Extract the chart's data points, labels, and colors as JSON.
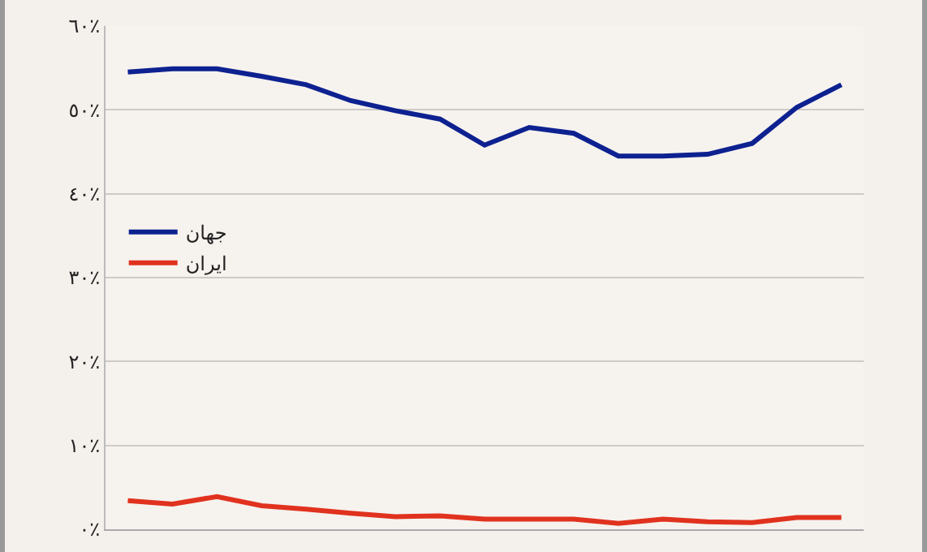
{
  "chart_data": {
    "type": "line",
    "categories": [
      null,
      null,
      null,
      null,
      null,
      null,
      null,
      null,
      null,
      null,
      null,
      null,
      null,
      null,
      null,
      null,
      null
    ],
    "series": [
      {
        "name": "جهان",
        "color": "#0d2190",
        "values": [
          54.5,
          54.9,
          54.9,
          54.0,
          53.0,
          51.1,
          49.9,
          48.9,
          45.8,
          47.9,
          47.2,
          44.5,
          44.5,
          44.7,
          46.0,
          50.3,
          53.0
        ]
      },
      {
        "name": "ایران",
        "color": "#e0321e",
        "values": [
          3.4,
          3.0,
          3.9,
          2.8,
          2.4,
          1.9,
          1.5,
          1.6,
          1.2,
          1.2,
          1.2,
          0.7,
          1.2,
          0.9,
          0.8,
          1.4,
          1.4
        ]
      }
    ],
    "ylim": [
      0,
      60
    ],
    "yticks": [
      {
        "value": 0,
        "label": "٠٪"
      },
      {
        "value": 10,
        "label": "١٠٪"
      },
      {
        "value": 20,
        "label": "٢٠٪"
      },
      {
        "value": 30,
        "label": "٣٠٪"
      },
      {
        "value": 40,
        "label": "٤٠٪"
      },
      {
        "value": 50,
        "label": "٥٠٪"
      },
      {
        "value": 60,
        "label": "٦٠٪"
      }
    ],
    "grid": "y",
    "legend": "left",
    "marker": "none",
    "line_style": "solid"
  }
}
